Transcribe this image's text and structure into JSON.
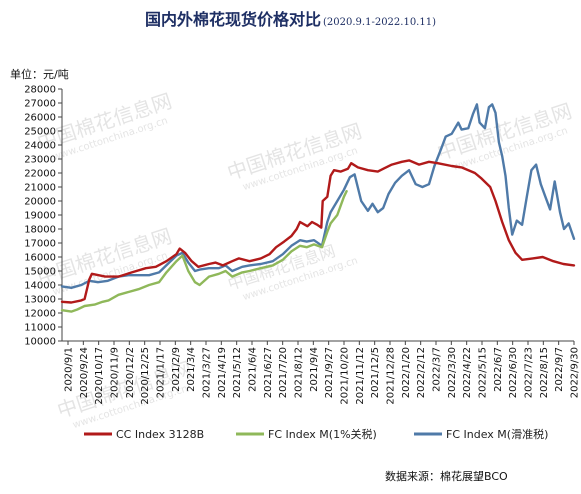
{
  "title": "国内外棉花现货价格对比",
  "subtitle": "(2020.9.1-2022.10.11)",
  "unit_label": "单位：元/吨",
  "source_text": "数据来源：棉花展望BCO",
  "watermark": {
    "text": "中国棉花信息网",
    "url": "www.cottonchina.org.cn"
  },
  "colors": {
    "cc": "#b11a1a",
    "fc1": "#8fb85a",
    "fcs": "#4f7aa8",
    "axis": "#444444"
  },
  "chart_data": {
    "type": "line",
    "title": "国内外棉花现货价格对比",
    "subtitle": "(2020.9.1-2022.10.11)",
    "ylabel": "单位：元/吨",
    "xlabel": "",
    "ylim": [
      10000,
      28000
    ],
    "yticks": [
      10000,
      11000,
      12000,
      13000,
      14000,
      15000,
      16000,
      17000,
      18000,
      19000,
      20000,
      21000,
      22000,
      23000,
      24000,
      25000,
      26000,
      27000,
      28000
    ],
    "x_range": [
      "2020-09-01",
      "2022-10-11"
    ],
    "x_tick_labels": [
      "2020/9/1",
      "2020/9/24",
      "2020/10/17",
      "2020/11/9",
      "2020/12/2",
      "2020/12/25",
      "2021/1/17",
      "2021/2/9",
      "2021/3/4",
      "2021/3/27",
      "2021/4/19",
      "2021/5/12",
      "2021/6/4",
      "2021/6/27",
      "2021/7/20",
      "2021/8/12",
      "2021/9/4",
      "2021/9/27",
      "2021/10/20",
      "2021/11/12",
      "2021/12/5",
      "2021/12/28",
      "2022/1/20",
      "2022/2/12",
      "2022/3/7",
      "2022/3/30",
      "2022/4/22",
      "2022/5/15",
      "2022/6/7",
      "2022/6/30",
      "2022/7/23",
      "2022/8/15",
      "2022/9/7",
      "2022/9/30"
    ],
    "grid": false,
    "legend": "bottom",
    "series": [
      {
        "name": "CC Index 3128B",
        "color": "#b11a1a",
        "points": [
          [
            "2020-09-01",
            12800
          ],
          [
            "2020-09-15",
            12750
          ],
          [
            "2020-09-30",
            12900
          ],
          [
            "2020-10-05",
            13000
          ],
          [
            "2020-10-12",
            14400
          ],
          [
            "2020-10-16",
            14800
          ],
          [
            "2020-11-05",
            14600
          ],
          [
            "2020-11-25",
            14600
          ],
          [
            "2020-12-15",
            14900
          ],
          [
            "2021-01-05",
            15200
          ],
          [
            "2021-01-20",
            15300
          ],
          [
            "2021-02-05",
            15700
          ],
          [
            "2021-02-20",
            16200
          ],
          [
            "2021-02-25",
            16600
          ],
          [
            "2021-03-05",
            16300
          ],
          [
            "2021-03-15",
            15700
          ],
          [
            "2021-03-25",
            15300
          ],
          [
            "2021-04-10",
            15500
          ],
          [
            "2021-04-20",
            15600
          ],
          [
            "2021-05-01",
            15400
          ],
          [
            "2021-05-15",
            15700
          ],
          [
            "2021-05-25",
            15900
          ],
          [
            "2021-06-10",
            15700
          ],
          [
            "2021-06-27",
            15900
          ],
          [
            "2021-07-10",
            16200
          ],
          [
            "2021-07-20",
            16700
          ],
          [
            "2021-08-01",
            17100
          ],
          [
            "2021-08-12",
            17500
          ],
          [
            "2021-08-20",
            18000
          ],
          [
            "2021-08-25",
            18500
          ],
          [
            "2021-09-05",
            18200
          ],
          [
            "2021-09-12",
            18500
          ],
          [
            "2021-09-20",
            18300
          ],
          [
            "2021-09-26",
            18100
          ],
          [
            "2021-09-28",
            20000
          ],
          [
            "2021-10-05",
            20300
          ],
          [
            "2021-10-10",
            21800
          ],
          [
            "2021-10-15",
            22200
          ],
          [
            "2021-10-25",
            22100
          ],
          [
            "2021-11-05",
            22300
          ],
          [
            "2021-11-10",
            22700
          ],
          [
            "2021-11-20",
            22400
          ],
          [
            "2021-12-05",
            22200
          ],
          [
            "2021-12-20",
            22100
          ],
          [
            "2021-12-28",
            22300
          ],
          [
            "2022-01-10",
            22600
          ],
          [
            "2022-01-25",
            22800
          ],
          [
            "2022-02-05",
            22900
          ],
          [
            "2022-02-20",
            22600
          ],
          [
            "2022-03-07",
            22800
          ],
          [
            "2022-03-20",
            22700
          ],
          [
            "2022-04-10",
            22500
          ],
          [
            "2022-04-25",
            22400
          ],
          [
            "2022-05-15",
            22000
          ],
          [
            "2022-05-25",
            21600
          ],
          [
            "2022-06-07",
            21000
          ],
          [
            "2022-06-15",
            20000
          ],
          [
            "2022-06-25",
            18500
          ],
          [
            "2022-07-05",
            17200
          ],
          [
            "2022-07-15",
            16300
          ],
          [
            "2022-07-25",
            15800
          ],
          [
            "2022-08-10",
            15900
          ],
          [
            "2022-08-25",
            16000
          ],
          [
            "2022-09-10",
            15700
          ],
          [
            "2022-09-25",
            15500
          ],
          [
            "2022-10-11",
            15400
          ]
        ]
      },
      {
        "name": "FC Index M(1%关税)",
        "color": "#8fb85a",
        "points": [
          [
            "2020-09-01",
            12200
          ],
          [
            "2020-09-15",
            12100
          ],
          [
            "2020-09-24",
            12250
          ],
          [
            "2020-10-05",
            12500
          ],
          [
            "2020-10-20",
            12600
          ],
          [
            "2020-11-01",
            12800
          ],
          [
            "2020-11-10",
            12900
          ],
          [
            "2020-11-25",
            13300
          ],
          [
            "2020-12-10",
            13500
          ],
          [
            "2020-12-25",
            13700
          ],
          [
            "2021-01-10",
            14000
          ],
          [
            "2021-01-25",
            14200
          ],
          [
            "2021-02-05",
            14900
          ],
          [
            "2021-02-20",
            15700
          ],
          [
            "2021-03-01",
            16100
          ],
          [
            "2021-03-10",
            15000
          ],
          [
            "2021-03-20",
            14200
          ],
          [
            "2021-03-27",
            14000
          ],
          [
            "2021-04-10",
            14600
          ],
          [
            "2021-04-25",
            14800
          ],
          [
            "2021-05-05",
            15000
          ],
          [
            "2021-05-15",
            14600
          ],
          [
            "2021-05-30",
            14900
          ],
          [
            "2021-06-10",
            15000
          ],
          [
            "2021-06-27",
            15200
          ],
          [
            "2021-07-15",
            15400
          ],
          [
            "2021-07-30",
            15800
          ],
          [
            "2021-08-12",
            16400
          ],
          [
            "2021-08-25",
            16800
          ],
          [
            "2021-09-04",
            16700
          ],
          [
            "2021-09-15",
            16900
          ],
          [
            "2021-09-27",
            16700
          ],
          [
            "2021-10-05",
            17800
          ],
          [
            "2021-10-10",
            18400
          ],
          [
            "2021-10-20",
            19000
          ],
          [
            "2021-10-30",
            20300
          ],
          [
            "2021-11-03",
            20700
          ]
        ]
      },
      {
        "name": "FC Index M(滑准税)",
        "color": "#4f7aa8",
        "points": [
          [
            "2020-09-01",
            13900
          ],
          [
            "2020-09-15",
            13800
          ],
          [
            "2020-09-30",
            14000
          ],
          [
            "2020-10-12",
            14300
          ],
          [
            "2020-10-25",
            14200
          ],
          [
            "2020-11-09",
            14300
          ],
          [
            "2020-11-25",
            14600
          ],
          [
            "2020-12-10",
            14700
          ],
          [
            "2020-12-25",
            14700
          ],
          [
            "2021-01-10",
            14700
          ],
          [
            "2021-01-25",
            14900
          ],
          [
            "2021-02-09",
            15600
          ],
          [
            "2021-02-20",
            16100
          ],
          [
            "2021-03-01",
            16300
          ],
          [
            "2021-03-10",
            15600
          ],
          [
            "2021-03-20",
            15000
          ],
          [
            "2021-03-27",
            15100
          ],
          [
            "2021-04-10",
            15200
          ],
          [
            "2021-04-25",
            15200
          ],
          [
            "2021-05-05",
            15400
          ],
          [
            "2021-05-15",
            15000
          ],
          [
            "2021-05-30",
            15300
          ],
          [
            "2021-06-10",
            15400
          ],
          [
            "2021-06-27",
            15500
          ],
          [
            "2021-07-15",
            15700
          ],
          [
            "2021-07-30",
            16200
          ],
          [
            "2021-08-12",
            16800
          ],
          [
            "2021-08-25",
            17200
          ],
          [
            "2021-09-04",
            17100
          ],
          [
            "2021-09-15",
            17200
          ],
          [
            "2021-09-27",
            16800
          ],
          [
            "2021-10-05",
            18500
          ],
          [
            "2021-10-10",
            19200
          ],
          [
            "2021-10-20",
            20000
          ],
          [
            "2021-10-30",
            20800
          ],
          [
            "2021-11-08",
            21700
          ],
          [
            "2021-11-15",
            21900
          ],
          [
            "2021-11-25",
            20000
          ],
          [
            "2021-12-05",
            19300
          ],
          [
            "2021-12-12",
            19800
          ],
          [
            "2021-12-20",
            19200
          ],
          [
            "2021-12-28",
            19500
          ],
          [
            "2022-01-05",
            20500
          ],
          [
            "2022-01-15",
            21300
          ],
          [
            "2022-01-25",
            21800
          ],
          [
            "2022-02-05",
            22200
          ],
          [
            "2022-02-15",
            21200
          ],
          [
            "2022-02-25",
            21000
          ],
          [
            "2022-03-07",
            21200
          ],
          [
            "2022-03-15",
            22500
          ],
          [
            "2022-03-25",
            23700
          ],
          [
            "2022-04-01",
            24600
          ],
          [
            "2022-04-10",
            24800
          ],
          [
            "2022-04-20",
            25600
          ],
          [
            "2022-04-25",
            25100
          ],
          [
            "2022-05-05",
            25200
          ],
          [
            "2022-05-12",
            26200
          ],
          [
            "2022-05-18",
            26900
          ],
          [
            "2022-05-22",
            25600
          ],
          [
            "2022-05-30",
            25200
          ],
          [
            "2022-06-05",
            26700
          ],
          [
            "2022-06-10",
            26900
          ],
          [
            "2022-06-15",
            26300
          ],
          [
            "2022-06-20",
            24200
          ],
          [
            "2022-06-25",
            23200
          ],
          [
            "2022-06-30",
            21800
          ],
          [
            "2022-07-05",
            19500
          ],
          [
            "2022-07-10",
            17600
          ],
          [
            "2022-07-17",
            18600
          ],
          [
            "2022-07-25",
            18300
          ],
          [
            "2022-08-01",
            20300
          ],
          [
            "2022-08-08",
            22200
          ],
          [
            "2022-08-15",
            22600
          ],
          [
            "2022-08-22",
            21200
          ],
          [
            "2022-08-29",
            20300
          ],
          [
            "2022-09-05",
            19400
          ],
          [
            "2022-09-12",
            21400
          ],
          [
            "2022-09-20",
            19200
          ],
          [
            "2022-09-26",
            18000
          ],
          [
            "2022-10-03",
            18400
          ],
          [
            "2022-10-11",
            17300
          ]
        ]
      }
    ]
  }
}
